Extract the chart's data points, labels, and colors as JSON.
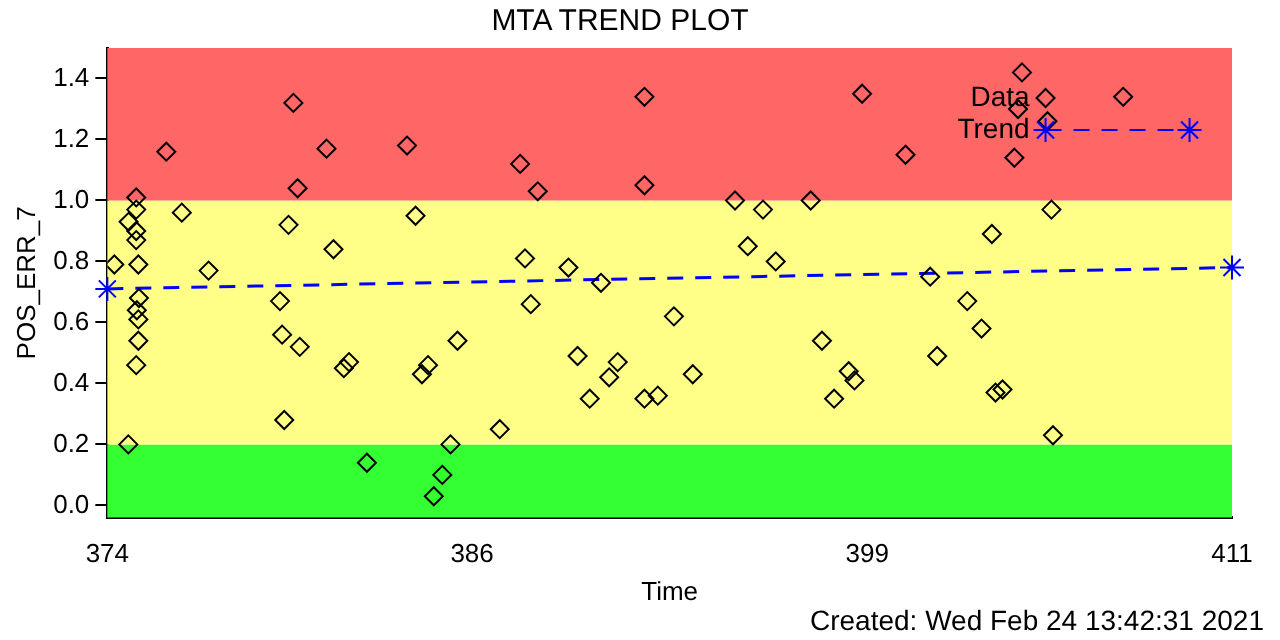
{
  "chart_data": {
    "type": "scatter",
    "title": "MTA TREND PLOT",
    "xlabel": "Time",
    "ylabel": "POS_ERR_7",
    "xlim": [
      374,
      411
    ],
    "xticks": [
      374,
      386,
      399,
      411
    ],
    "ylim": [
      -0.04,
      1.5
    ],
    "yticks": [
      {
        "value": 0,
        "label": "0.0"
      },
      {
        "value": 0.2,
        "label": "0.2"
      },
      {
        "value": 0.4,
        "label": "0.4"
      },
      {
        "value": 0.6,
        "label": "0.6"
      },
      {
        "value": 0.8,
        "label": "0.8"
      },
      {
        "value": 1,
        "label": "1.0"
      },
      {
        "value": 1.2,
        "label": "1.2"
      },
      {
        "value": 1.4,
        "label": "1.4"
      }
    ],
    "grid": false,
    "legend": "top right",
    "bands": [
      {
        "axis": "y",
        "from": -0.04,
        "to": 0.2,
        "color": "#33ff33"
      },
      {
        "axis": "y",
        "from": 0.2,
        "to": 1.0,
        "color": "#ffff88"
      },
      {
        "axis": "y",
        "from": 1.0,
        "to": 1.5,
        "color": "#ff6666"
      }
    ],
    "series": [
      {
        "name": "Data",
        "color": "#000000",
        "marker": "diamond",
        "x": [
          380.12,
          375.94,
          381.21,
          380.26,
          376.45,
          379.96,
          381.44,
          374.23,
          377.33,
          379.68,
          379.75,
          380.33,
          381.78,
          381.95,
          379.82,
          374.69,
          382.54,
          374.95,
          374.95,
          374.7,
          374.95,
          374.95,
          375.02,
          375.04,
          374.97,
          375.02,
          375.02,
          374.95,
          391.67,
          383.86,
          387.58,
          388.16,
          391.67,
          384.14,
          387.74,
          389.17,
          390.24,
          387.93,
          392.64,
          385.52,
          389.47,
          384.55,
          384.35,
          390.79,
          390.51,
          389.87,
          391.67,
          392.11,
          386.91,
          385.29,
          385.02,
          384.74,
          398.83,
          400.26,
          394.65,
          395.57,
          397.14,
          395.07,
          395.99,
          401.07,
          397.51,
          401.3,
          393.26,
          398.39,
          398.58,
          397.91,
          404.09,
          407.42,
          403.96,
          404.93,
          403.84,
          405.06,
          403.1,
          402.29,
          402.76,
          403.22,
          403.45,
          405.11
        ],
        "values": [
          1.32,
          1.16,
          1.17,
          1.04,
          0.96,
          0.92,
          0.84,
          0.79,
          0.77,
          0.67,
          0.56,
          0.52,
          0.45,
          0.47,
          0.28,
          0.2,
          0.14,
          1.01,
          0.97,
          0.93,
          0.9,
          0.87,
          0.79,
          0.68,
          0.64,
          0.61,
          0.54,
          0.46,
          1.34,
          1.18,
          1.12,
          1.03,
          1.05,
          0.95,
          0.81,
          0.78,
          0.73,
          0.66,
          0.62,
          0.54,
          0.49,
          0.46,
          0.43,
          0.47,
          0.42,
          0.35,
          0.35,
          0.36,
          0.25,
          0.2,
          0.1,
          0.03,
          1.35,
          1.15,
          1.0,
          0.97,
          1.0,
          0.85,
          0.8,
          0.75,
          0.54,
          0.49,
          0.43,
          0.44,
          0.41,
          0.35,
          1.42,
          1.34,
          1.3,
          1.26,
          1.14,
          0.97,
          0.89,
          0.67,
          0.58,
          0.37,
          0.38,
          0.23
        ]
      },
      {
        "name": "Trend",
        "type": "line",
        "color": "#0000ff",
        "marker": "cross",
        "line_style": "dashed",
        "x": [
          374,
          411
        ],
        "values": [
          0.71,
          0.78
        ]
      }
    ],
    "annotations": [
      "Created: Wed Feb 24 13:42:31 2021"
    ]
  }
}
